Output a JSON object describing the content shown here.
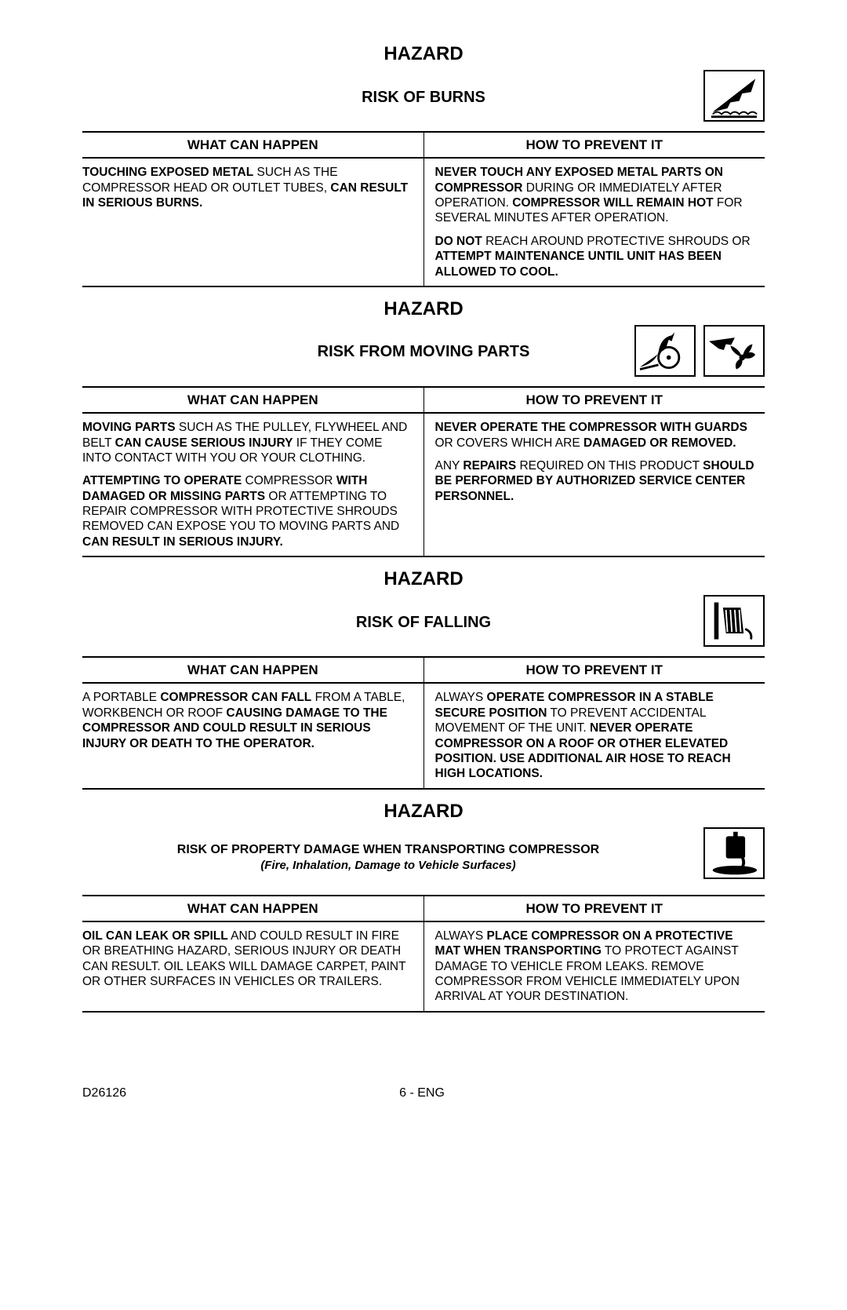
{
  "page": {
    "doc_number": "D26126",
    "page_label": "6 - ENG"
  },
  "hazard_label": "HAZARD",
  "col_left_header": "WHAT CAN HAPPEN",
  "col_right_header": "HOW TO PREVENT IT",
  "sections": [
    {
      "risk_title": "RISK OF BURNS",
      "left": [
        "<b>TOUCHING EXPOSED METAL</b> SUCH AS THE COMPRESSOR HEAD OR OUTLET TUBES, <b>CAN RESULT IN SERIOUS BURNS.</b>"
      ],
      "right": [
        "<b>NEVER TOUCH ANY EXPOSED METAL PARTS ON COMPRESSOR</b> DURING OR IMMEDIATELY AFTER OPERATION. <b>COMPRESSOR WILL REMAIN HOT</b> FOR SEVERAL MINUTES AFTER OPERATION.",
        "<b>DO NOT</b> REACH AROUND PROTECTIVE SHROUDS OR <b>ATTEMPT MAINTENANCE UNTIL UNIT HAS BEEN ALLOWED TO COOL.</b>"
      ]
    },
    {
      "risk_title": "RISK FROM MOVING PARTS",
      "left": [
        "<b>MOVING PARTS</b> SUCH AS THE PULLEY, FLYWHEEL AND BELT  <b>CAN CAUSE SERIOUS INJURY</b>  IF THEY COME INTO CONTACT WITH YOU OR YOUR CLOTHING.",
        "<b>ATTEMPTING TO OPERATE</b> COMPRESSOR <b>WITH DAMAGED OR MISSING PARTS</b>  OR ATTEMPTING TO REPAIR COMPRESSOR WITH PROTECTIVE SHROUDS REMOVED CAN EXPOSE YOU TO MOVING PARTS AND <b>CAN RESULT IN SERIOUS INJURY.</b>"
      ],
      "right": [
        "<b>NEVER OPERATE THE COMPRESSOR WITH GUARDS</b> OR COVERS WHICH ARE <b>DAMAGED OR REMOVED.</b>",
        "ANY <b>REPAIRS</b> REQUIRED ON THIS PRODUCT <b>SHOULD BE PERFORMED BY AUTHORIZED SERVICE CENTER PERSONNEL.</b>"
      ]
    },
    {
      "risk_title": "RISK OF FALLING",
      "left": [
        "A PORTABLE <b>COMPRESSOR CAN FALL</b> FROM A TABLE, WORKBENCH OR ROOF <b>CAUSING DAMAGE TO THE COMPRESSOR AND COULD RESULT IN SERIOUS INJURY OR DEATH TO THE OPERATOR.</b>"
      ],
      "right": [
        "ALWAYS <b>OPERATE COMPRESSOR IN A STABLE SECURE POSITION</b> TO PREVENT ACCIDENTAL MOVEMENT OF THE UNIT. <b>NEVER OPERATE COMPRESSOR ON A ROOF OR OTHER ELEVATED POSITION.  USE ADDITIONAL AIR HOSE TO REACH HIGH LOCATIONS.</b>"
      ]
    },
    {
      "risk_title": "RISK OF PROPERTY DAMAGE WHEN TRANSPORTING COMPRESSOR",
      "risk_subtitle": "(Fire, Inhalation, Damage to Vehicle Surfaces)",
      "left": [
        "<b>OIL CAN LEAK OR SPILL</b> AND COULD RESULT IN FIRE OR BREATHING HAZARD, SERIOUS INJURY OR DEATH CAN RESULT. OIL LEAKS WILL DAMAGE CARPET, PAINT OR OTHER SURFACES IN VEHICLES OR TRAILERS."
      ],
      "right": [
        "ALWAYS <b>PLACE COMPRESSOR ON A PROTECTIVE MAT WHEN TRANSPORTING</b> TO PROTECT AGAINST DAMAGE TO VEHICLE FROM LEAKS. REMOVE COMPRESSOR FROM VEHICLE IMMEDIATELY UPON ARRIVAL AT YOUR DESTINATION."
      ]
    }
  ]
}
